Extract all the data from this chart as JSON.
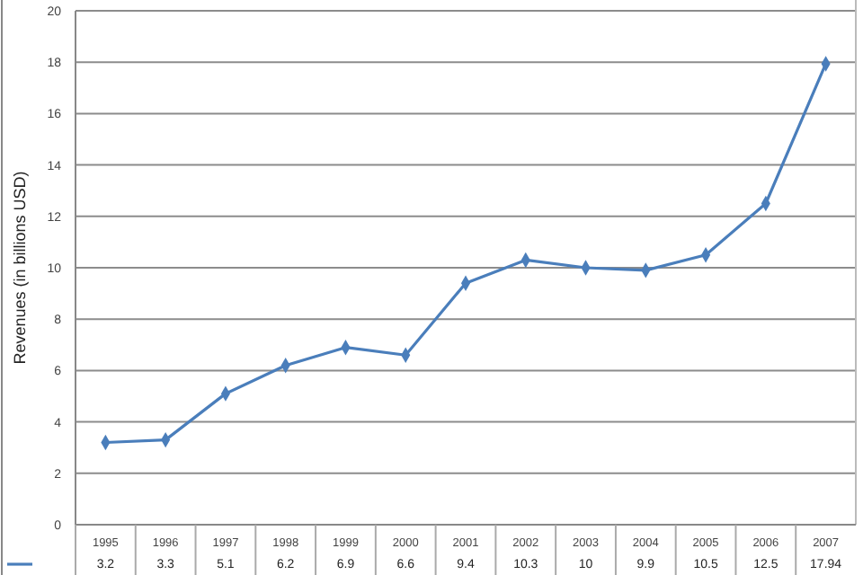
{
  "chart_data": {
    "type": "line",
    "ylabel": "Revenues (in billions USD)",
    "categories": [
      "1995",
      "1996",
      "1997",
      "1998",
      "1999",
      "2000",
      "2001",
      "2002",
      "2003",
      "2004",
      "2005",
      "2006",
      "2007"
    ],
    "series": [
      {
        "color": "#4a7ebb",
        "values": [
          3.2,
          3.3,
          5.1,
          6.2,
          6.9,
          6.6,
          9.4,
          10.3,
          10,
          9.9,
          10.5,
          12.5,
          17.94
        ]
      }
    ],
    "ylim": [
      0,
      20
    ],
    "yticks": [
      0,
      2,
      4,
      6,
      8,
      10,
      12,
      14,
      16,
      18,
      20
    ],
    "grid": "y",
    "marker": "diamond",
    "data_labels": true
  }
}
